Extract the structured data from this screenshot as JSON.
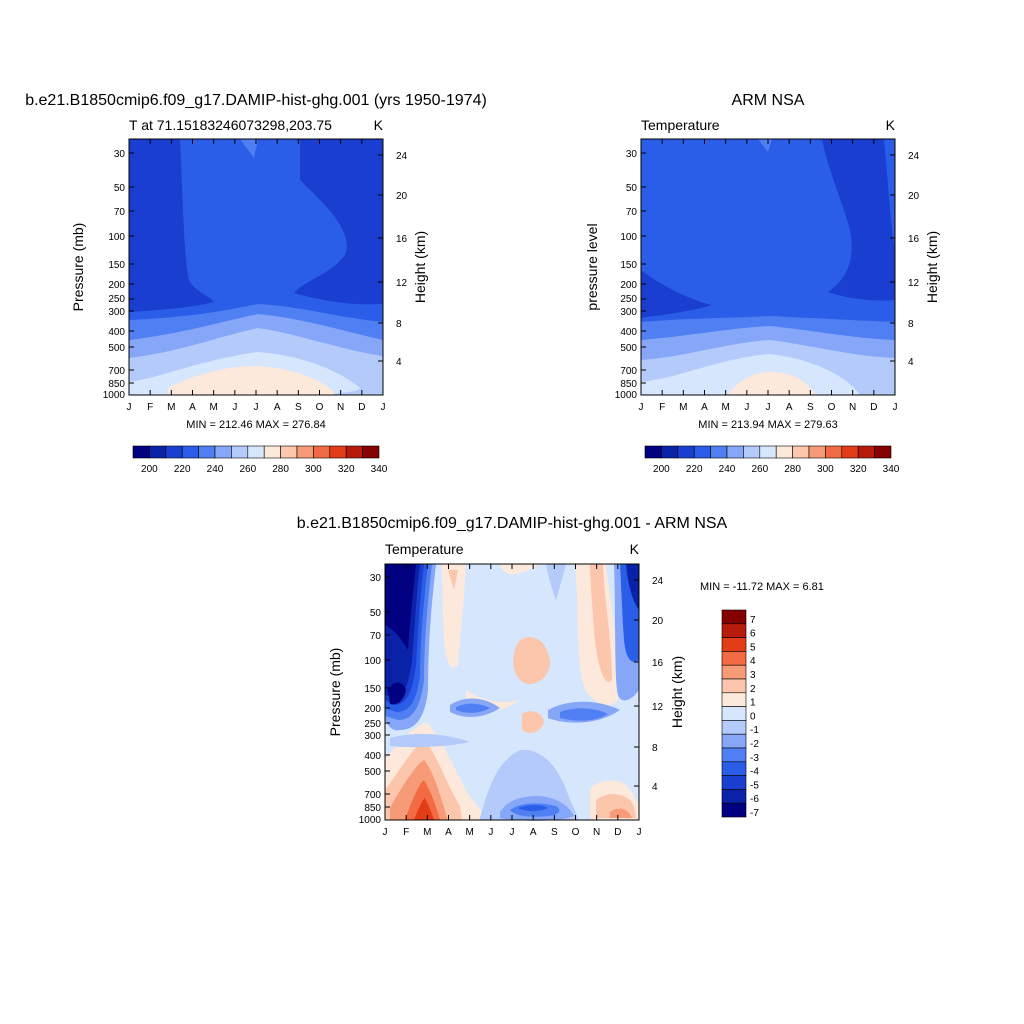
{
  "colors": {
    "scale": [
      "#000080",
      "#0a22a8",
      "#1a3fd0",
      "#2a5ee8",
      "#4f7ff2",
      "#86a6f7",
      "#b3cafb",
      "#d6e6fd",
      "#fde9dc",
      "#fbc6ab",
      "#f79a78",
      "#f36b45",
      "#e33d17",
      "#b81a0c",
      "#850000"
    ]
  },
  "panel_left": {
    "title": "b.e21.B1850cmip6.f09_g17.DAMIP-hist-ghg.001 (yrs 1950-1974)",
    "left_string": "T at 71.15183246073298,203.75",
    "right_string": "K",
    "ylabel": "Pressure (mb)",
    "y2label": "Height (km)",
    "stats": "MIN = 212.46 MAX = 276.84"
  },
  "panel_right": {
    "title": "ARM NSA",
    "left_string": "Temperature",
    "right_string": "K",
    "ylabel": "pressure level",
    "y2label": "Height (km)",
    "stats": "MIN = 213.94 MAX = 279.63"
  },
  "panel_diff": {
    "title": "b.e21.B1850cmip6.f09_g17.DAMIP-hist-ghg.001 - ARM NSA",
    "left_string": "Temperature",
    "right_string": "K",
    "ylabel": "Pressure (mb)",
    "y2label": "Height (km)",
    "stats": "MIN = -11.72 MAX =   6.81"
  },
  "chart_data": [
    {
      "type": "heatmap",
      "name": "model",
      "x": [
        "J",
        "F",
        "M",
        "A",
        "M",
        "J",
        "J",
        "A",
        "S",
        "O",
        "N",
        "D",
        "J"
      ],
      "y_ticks": [
        30,
        50,
        70,
        100,
        150,
        200,
        250,
        300,
        400,
        500,
        700,
        850,
        1000
      ],
      "y2_ticks": [
        4,
        8,
        12,
        16,
        20,
        24
      ],
      "colorbar_labels": [
        200,
        220,
        240,
        260,
        280,
        300,
        320,
        340
      ]
    },
    {
      "type": "heatmap",
      "name": "obs",
      "x": [
        "J",
        "F",
        "M",
        "A",
        "M",
        "J",
        "J",
        "A",
        "S",
        "O",
        "N",
        "D",
        "J"
      ],
      "y_ticks": [
        30,
        50,
        70,
        100,
        150,
        200,
        250,
        300,
        400,
        500,
        700,
        850,
        1000
      ],
      "y2_ticks": [
        4,
        8,
        12,
        16,
        20,
        24
      ],
      "colorbar_labels": [
        200,
        220,
        240,
        260,
        280,
        300,
        320,
        340
      ]
    },
    {
      "type": "heatmap",
      "name": "difference",
      "x": [
        "J",
        "F",
        "M",
        "A",
        "M",
        "J",
        "J",
        "A",
        "S",
        "O",
        "N",
        "D",
        "J"
      ],
      "y_ticks": [
        30,
        50,
        70,
        100,
        150,
        200,
        250,
        300,
        400,
        500,
        700,
        850,
        1000
      ],
      "y2_ticks": [
        4,
        8,
        12,
        16,
        20,
        24
      ],
      "colorbar_labels": [
        7,
        6,
        5,
        4,
        3,
        2,
        1,
        0,
        -1,
        -2,
        -3,
        -4,
        -5,
        -6,
        -7
      ]
    }
  ]
}
